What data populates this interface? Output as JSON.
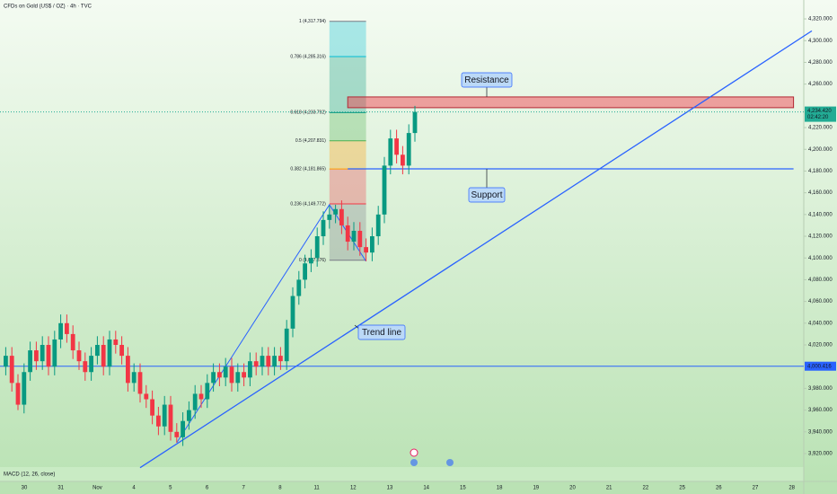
{
  "chart_data": {
    "type": "candlestick",
    "title": "CFDs on Gold (US$ / OZ) · 4h · TVC",
    "indicator": "MACD (12, 26, close)",
    "x_labels": [
      "30",
      "31",
      "Nov",
      "4",
      "5",
      "6",
      "7",
      "8",
      "11",
      "12",
      "13",
      "14",
      "15",
      "18",
      "19",
      "20",
      "21",
      "22",
      "25",
      "26",
      "27",
      "28"
    ],
    "ylim": [
      3907.6,
      4337.4
    ],
    "yticks": [
      {
        "value": 3920,
        "label": "3,920.000"
      },
      {
        "value": 3940,
        "label": "3,940.000"
      },
      {
        "value": 3960,
        "label": "3,960.000"
      },
      {
        "value": 3980,
        "label": "3,980.000"
      },
      {
        "value": 4020,
        "label": "4,020.000"
      },
      {
        "value": 4040,
        "label": "4,040.000"
      },
      {
        "value": 4060,
        "label": "4,060.000"
      },
      {
        "value": 4080,
        "label": "4,080.000"
      },
      {
        "value": 4100,
        "label": "4,100.000"
      },
      {
        "value": 4120,
        "label": "4,120.000"
      },
      {
        "value": 4140,
        "label": "4,140.000"
      },
      {
        "value": 4160,
        "label": "4,160.000"
      },
      {
        "value": 4180,
        "label": "4,180.000"
      },
      {
        "value": 4200,
        "label": "4,200.000"
      },
      {
        "value": 4220,
        "label": "4,220.000"
      },
      {
        "value": 4260,
        "label": "4,260.000"
      },
      {
        "value": 4280,
        "label": "4,280.000"
      },
      {
        "value": 4300,
        "label": "4,300.000"
      },
      {
        "value": 4320,
        "label": "4,320.000"
      }
    ],
    "up_color": "#089981",
    "down_color": "#f23645",
    "candles": [
      [
        4000,
        4018,
        3992,
        4010
      ],
      [
        4010,
        4018,
        3977,
        3985
      ],
      [
        3985,
        3993,
        3960,
        3965
      ],
      [
        3965,
        4003,
        3957,
        3995
      ],
      [
        3995,
        4023,
        3987,
        4015
      ],
      [
        4015,
        4023,
        3997,
        4005
      ],
      [
        4005,
        4028,
        3997,
        4020
      ],
      [
        4020,
        4028,
        3992,
        4000
      ],
      [
        4000,
        4033,
        3992,
        4025
      ],
      [
        4025,
        4048,
        4017,
        4040
      ],
      [
        4040,
        4048,
        4022,
        4030
      ],
      [
        4030,
        4038,
        4007,
        4015
      ],
      [
        4015,
        4023,
        3997,
        4005
      ],
      [
        4005,
        4013,
        3987,
        3995
      ],
      [
        3995,
        4018,
        3987,
        4010
      ],
      [
        4010,
        4028,
        4002,
        4020
      ],
      [
        4020,
        4028,
        3992,
        4000
      ],
      [
        4000,
        4033,
        3992,
        4025
      ],
      [
        4025,
        4033,
        4012,
        4020
      ],
      [
        4020,
        4028,
        4002,
        4010
      ],
      [
        4010,
        4018,
        3977,
        3985
      ],
      [
        3985,
        4003,
        3977,
        3995
      ],
      [
        3995,
        4003,
        3967,
        3975
      ],
      [
        3975,
        3983,
        3962,
        3970
      ],
      [
        3970,
        3978,
        3947,
        3955
      ],
      [
        3955,
        3963,
        3937,
        3945
      ],
      [
        3945,
        3973,
        3937,
        3965
      ],
      [
        3965,
        3973,
        3932,
        3940
      ],
      [
        3940,
        3948,
        3930,
        3935
      ],
      [
        3935,
        3958,
        3927,
        3950
      ],
      [
        3950,
        3968,
        3942,
        3960
      ],
      [
        3960,
        3983,
        3952,
        3975
      ],
      [
        3975,
        3983,
        3962,
        3970
      ],
      [
        3970,
        3993,
        3962,
        3985
      ],
      [
        3985,
        4003,
        3977,
        3995
      ],
      [
        3995,
        4003,
        3982,
        3990
      ],
      [
        3990,
        4008,
        3982,
        4000
      ],
      [
        4000,
        4008,
        3977,
        3985
      ],
      [
        3985,
        4003,
        3977,
        3995
      ],
      [
        3995,
        4003,
        3982,
        3990
      ],
      [
        3990,
        4013,
        3982,
        4005
      ],
      [
        4005,
        4013,
        3992,
        4000
      ],
      [
        4000,
        4018,
        3992,
        4010
      ],
      [
        4010,
        4018,
        3992,
        4000
      ],
      [
        4000,
        4018,
        3992,
        4010
      ],
      [
        4010,
        4018,
        3997,
        4005
      ],
      [
        4005,
        4043,
        3997,
        4035
      ],
      [
        4035,
        4073,
        4027,
        4065
      ],
      [
        4065,
        4088,
        4057,
        4080
      ],
      [
        4080,
        4103,
        4072,
        4095
      ],
      [
        4095,
        4108,
        4087,
        4100
      ],
      [
        4100,
        4128,
        4092,
        4120
      ],
      [
        4120,
        4143,
        4112,
        4135
      ],
      [
        4135,
        4148,
        4127,
        4140
      ],
      [
        4140,
        4149,
        4132,
        4145
      ],
      [
        4145,
        4153,
        4122,
        4130
      ],
      [
        4130,
        4138,
        4107,
        4115
      ],
      [
        4115,
        4133,
        4107,
        4125
      ],
      [
        4125,
        4133,
        4102,
        4110
      ],
      [
        4110,
        4118,
        4097,
        4105
      ],
      [
        4105,
        4128,
        4097,
        4120
      ],
      [
        4120,
        4148,
        4112,
        4140
      ],
      [
        4140,
        4193,
        4132,
        4185
      ],
      [
        4185,
        4218,
        4177,
        4210
      ],
      [
        4210,
        4218,
        4187,
        4195
      ],
      [
        4195,
        4203,
        4177,
        4185
      ],
      [
        4185,
        4223,
        4177,
        4215
      ],
      [
        4215,
        4240,
        4207,
        4234.42
      ]
    ],
    "price_line": {
      "value": 4234.42,
      "label": "4,234.420",
      "countdown": "02:42:20",
      "color": "#22ab94"
    },
    "level": {
      "value": 4000.416,
      "label": "4,000.416",
      "color": "#2962ff"
    },
    "resistance": {
      "label": "Resistance",
      "range": [
        4238.3,
        4248.2
      ],
      "from_index": 56,
      "to_index": 129,
      "color": "#f23645"
    },
    "support": {
      "label": "Support",
      "value": 4182,
      "from_index": 56,
      "to_index": 129,
      "color": "#2962ff"
    },
    "trend_line": {
      "label": "Trend line",
      "from": {
        "index": 22,
        "price": 3907
      },
      "to": {
        "index": 132,
        "price": 4309
      },
      "color": "#2962ff"
    },
    "fib": {
      "from_index": 53,
      "to_index": 59,
      "swing": [
        {
          "index": 28,
          "price": 3930
        },
        {
          "index": 53,
          "price": 4149
        },
        {
          "index": 59,
          "price": 4097
        }
      ],
      "levels": [
        {
          "value": 4317.794,
          "label": "1 (4,317.794)",
          "color": "#787b86"
        },
        {
          "value": 4285.316,
          "label": "0.786 (4,285.316)",
          "color": "#00bcd4"
        },
        {
          "value": 4233.792,
          "label": "0.618 (4,233.792)",
          "color": "#089981"
        },
        {
          "value": 4207.831,
          "label": "0.5 (4,207.831)",
          "color": "#4caf50"
        },
        {
          "value": 4181.865,
          "label": "0.382 (4,181.865)",
          "color": "#ff9800"
        },
        {
          "value": 4149.772,
          "label": "0.236 (4,149.772)",
          "color": "#f23645"
        },
        {
          "value": 4097.876,
          "label": "0 (4,097.876)",
          "color": "#787b86"
        }
      ]
    }
  }
}
